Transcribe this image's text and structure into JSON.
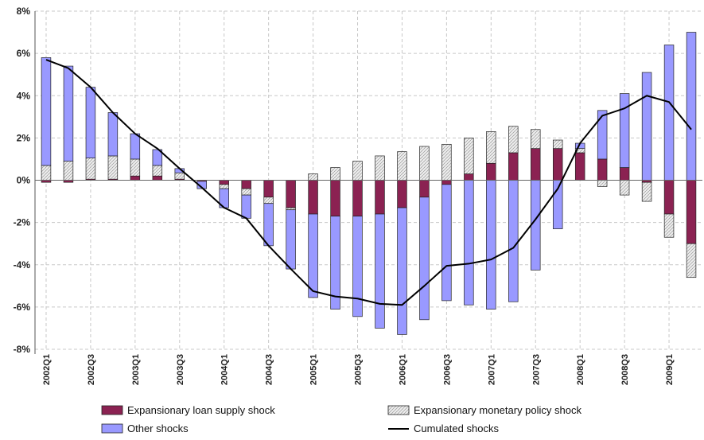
{
  "chart_data": {
    "type": "bar",
    "stacked": true,
    "title": "",
    "xlabel": "",
    "ylabel": "",
    "ylim": [
      -8,
      8
    ],
    "y_ticks": [
      8,
      6,
      4,
      2,
      0,
      -2,
      -4,
      -6,
      -8
    ],
    "y_tick_format": "%",
    "grid": true,
    "legend_position": "bottom",
    "categories": [
      "2002Q1",
      "2002Q2",
      "2002Q3",
      "2002Q4",
      "2003Q1",
      "2003Q2",
      "2003Q3",
      "2003Q4",
      "2004Q1",
      "2004Q2",
      "2004Q3",
      "2004Q4",
      "2005Q1",
      "2005Q2",
      "2005Q3",
      "2005Q4",
      "2006Q1",
      "2006Q2",
      "2006Q3",
      "2006Q4",
      "2007Q1",
      "2007Q2",
      "2007Q3",
      "2007Q4",
      "2008Q1",
      "2008Q2",
      "2008Q3",
      "2008Q4",
      "2009Q1",
      "2009Q2"
    ],
    "x_tick_labels": [
      "2002Q1",
      "",
      "2002Q3",
      "",
      "2003Q1",
      "",
      "2003Q3",
      "",
      "2004Q1",
      "",
      "2004Q3",
      "",
      "2005Q1",
      "",
      "2005Q3",
      "",
      "2006Q1",
      "",
      "2006Q3",
      "",
      "2007Q1",
      "",
      "2007Q3",
      "",
      "2008Q1",
      "",
      "2008Q3",
      "",
      "2009Q1",
      ""
    ],
    "series": [
      {
        "name": "Expansionary loan supply shock",
        "kind": "bar",
        "color": "#8b2252",
        "values": [
          -0.1,
          -0.1,
          0.05,
          0.05,
          0.2,
          0.2,
          0.05,
          -0.05,
          -0.2,
          -0.4,
          -0.8,
          -1.3,
          -1.6,
          -1.7,
          -1.7,
          -1.6,
          -1.3,
          -0.8,
          -0.2,
          0.3,
          0.8,
          1.3,
          1.5,
          1.5,
          1.3,
          1.0,
          0.6,
          -0.1,
          -1.6,
          -3.0
        ]
      },
      {
        "name": "Expansionary monetary policy shock",
        "kind": "bar",
        "color": "#e0e0e0",
        "values": [
          0.7,
          0.9,
          1.0,
          1.1,
          0.8,
          0.5,
          0.3,
          0.0,
          -0.2,
          -0.3,
          -0.3,
          -0.1,
          0.3,
          0.6,
          0.9,
          1.15,
          1.35,
          1.6,
          1.7,
          1.7,
          1.5,
          1.25,
          0.9,
          0.4,
          0.2,
          -0.3,
          -0.7,
          -0.9,
          -1.1,
          -1.6
        ]
      },
      {
        "name": "Other shocks",
        "kind": "bar",
        "color": "#9999ff",
        "values": [
          5.1,
          4.5,
          3.35,
          2.05,
          1.2,
          0.75,
          0.2,
          -0.35,
          -0.9,
          -1.1,
          -2.0,
          -2.8,
          -3.95,
          -4.4,
          -4.75,
          -5.4,
          -6.0,
          -5.8,
          -5.5,
          -5.9,
          -6.1,
          -5.75,
          -4.25,
          -2.3,
          0.25,
          2.3,
          3.5,
          5.1,
          6.4,
          7.0
        ]
      },
      {
        "name": "Cumulated shocks",
        "kind": "line",
        "color": "#000000",
        "values": [
          5.7,
          5.3,
          4.4,
          3.2,
          2.2,
          1.5,
          0.55,
          -0.35,
          -1.3,
          -1.8,
          -3.1,
          -4.2,
          -5.25,
          -5.5,
          -5.6,
          -5.85,
          -5.9,
          -5.0,
          -4.05,
          -3.95,
          -3.75,
          -3.2,
          -1.85,
          -0.4,
          1.75,
          3.05,
          3.4,
          4.0,
          3.7,
          2.4
        ]
      }
    ]
  }
}
